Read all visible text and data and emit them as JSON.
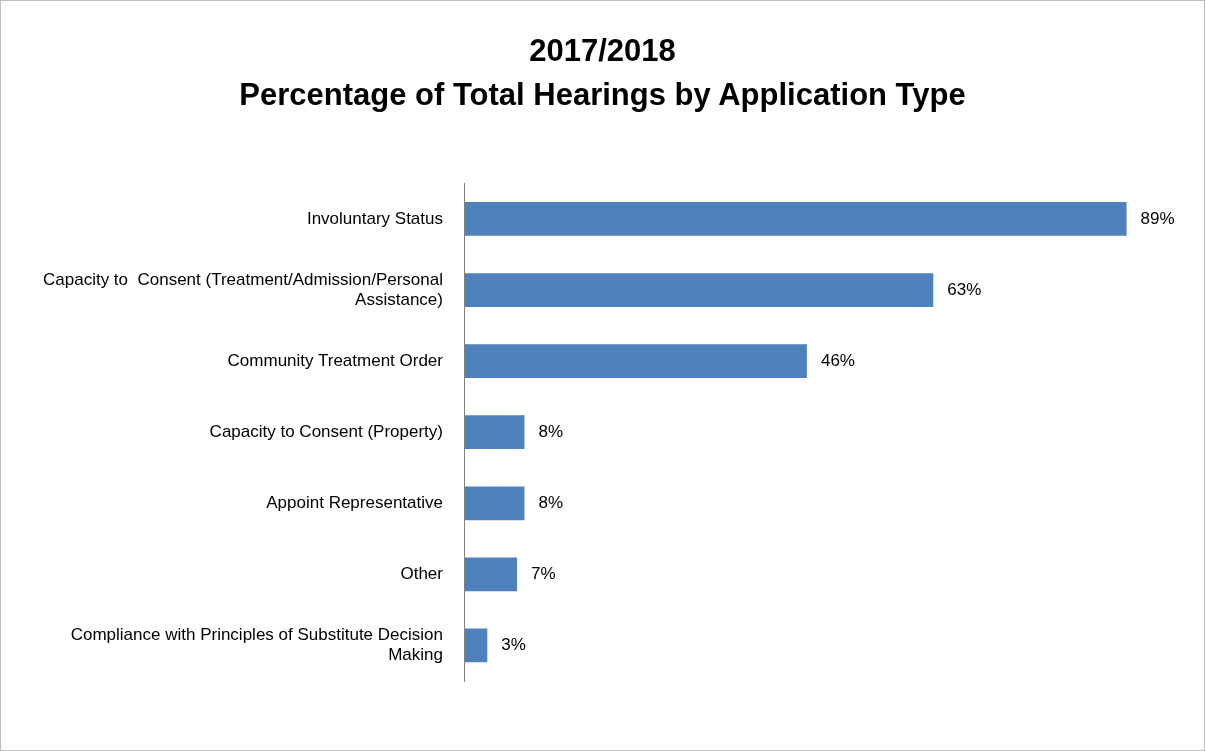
{
  "chart_data": {
    "type": "bar",
    "orientation": "horizontal",
    "title": "2017/2018\nPercentage of Total Hearings by Application Type",
    "categories": [
      "Involuntary Status",
      "Capacity to  Consent (Treatment/Admission/Personal Assistance)",
      "Community Treatment Order",
      "Capacity to Consent (Property)",
      "Appoint Representative",
      "Other",
      "Compliance with Principles of Substitute Decision Making"
    ],
    "values": [
      89,
      63,
      46,
      8,
      8,
      7,
      3
    ],
    "value_labels": [
      "89%",
      "63%",
      "46%",
      "8%",
      "8%",
      "7%",
      "3%"
    ],
    "color": "#4f81bd"
  }
}
